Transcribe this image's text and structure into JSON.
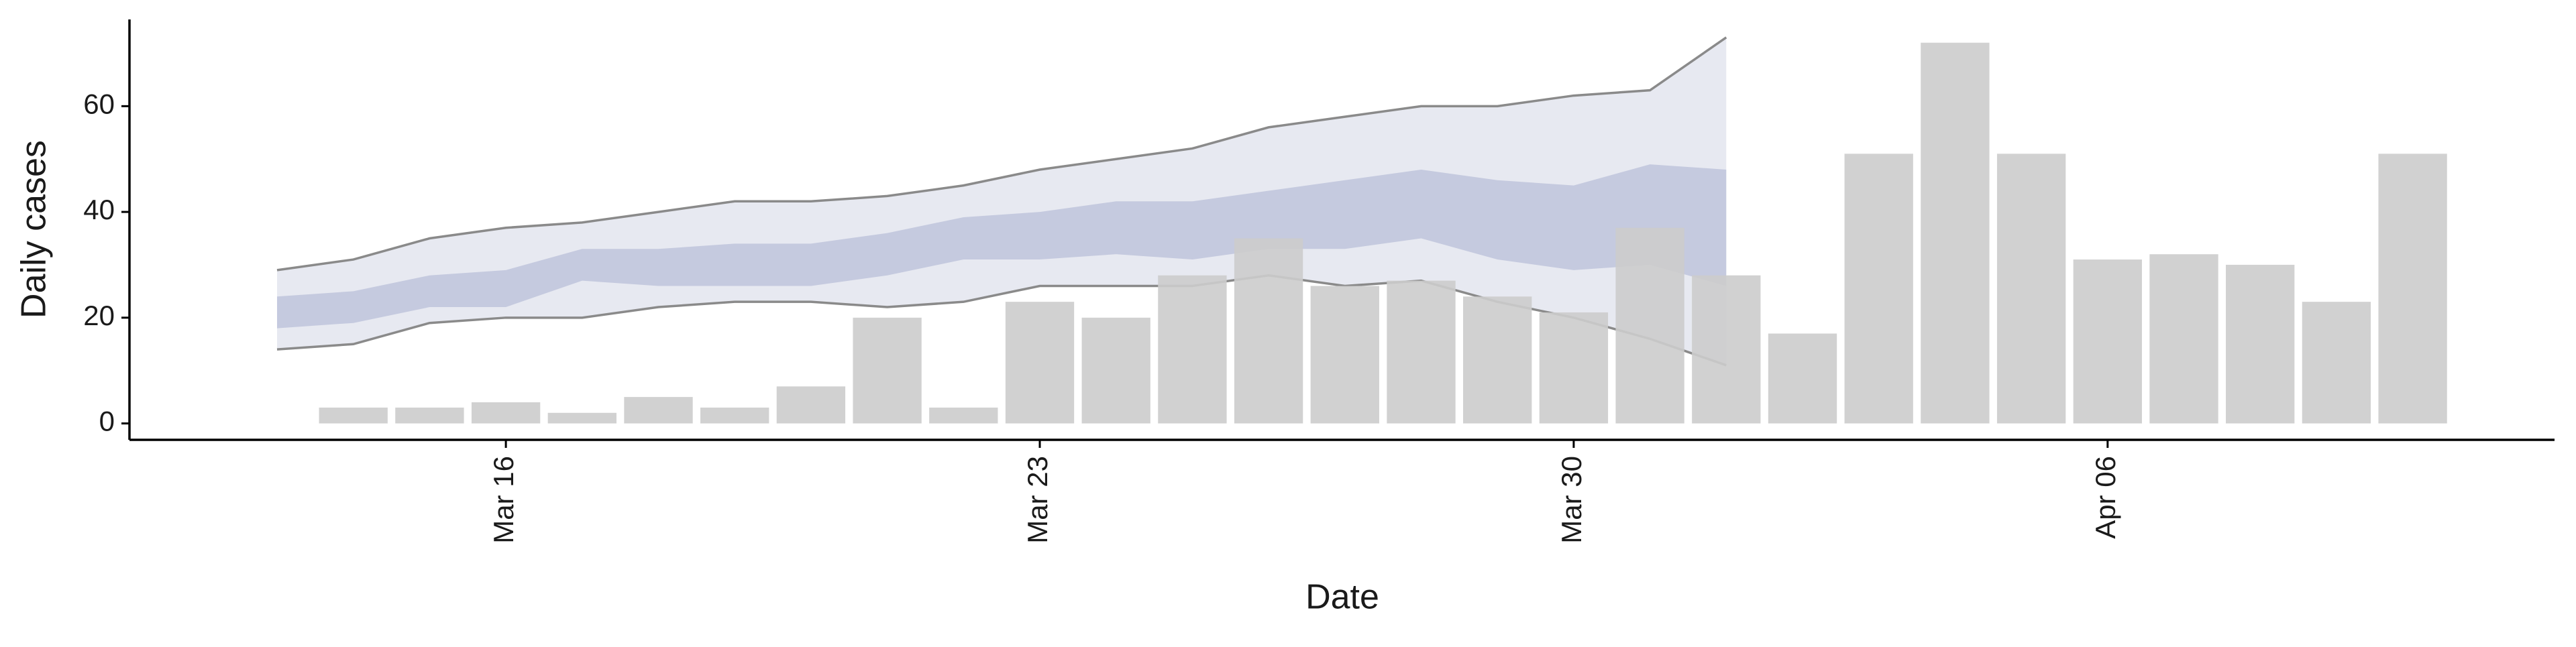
{
  "chart_data": {
    "type": "bar",
    "x_label": "Date",
    "y_label": "Daily cases",
    "categories": [
      "Mar 13",
      "Mar 14",
      "Mar 15",
      "Mar 16",
      "Mar 17",
      "Mar 18",
      "Mar 19",
      "Mar 20",
      "Mar 21",
      "Mar 22",
      "Mar 23",
      "Mar 24",
      "Mar 25",
      "Mar 26",
      "Mar 27",
      "Mar 28",
      "Mar 29",
      "Mar 30",
      "Mar 31",
      "Apr 01",
      "Apr 02",
      "Apr 03",
      "Apr 04",
      "Apr 05",
      "Apr 06",
      "Apr 07",
      "Apr 08",
      "Apr 09",
      "Apr 10"
    ],
    "series": [
      {
        "color": "#cccccc",
        "values": [
          null,
          3,
          3,
          4,
          2,
          5,
          3,
          7,
          20,
          3,
          23,
          20,
          28,
          35,
          26,
          27,
          24,
          21,
          37,
          28,
          17,
          51,
          72,
          51,
          31,
          32,
          30,
          23,
          51
        ]
      }
    ],
    "ribbons": [
      {
        "color": "#dfe2ec",
        "line_color": "#8a8a8a",
        "upper": [
          29,
          31,
          35,
          37,
          38,
          40,
          42,
          42,
          43,
          45,
          48,
          50,
          52,
          56,
          58,
          60,
          60,
          62,
          63,
          73,
          null,
          null,
          null,
          null,
          null,
          null,
          null,
          null,
          null
        ],
        "lower": [
          14,
          15,
          19,
          20,
          20,
          22,
          23,
          23,
          22,
          23,
          26,
          26,
          26,
          28,
          26,
          27,
          23,
          20,
          16,
          11,
          null,
          null,
          null,
          null,
          null,
          null,
          null,
          null,
          null
        ]
      },
      {
        "color": "#b9bfd8",
        "upper": [
          24,
          25,
          28,
          29,
          33,
          33,
          34,
          34,
          36,
          39,
          40,
          42,
          42,
          44,
          46,
          48,
          46,
          45,
          49,
          48,
          null,
          null,
          null,
          null,
          null,
          null,
          null,
          null,
          null
        ],
        "lower": [
          18,
          19,
          22,
          22,
          27,
          26,
          26,
          26,
          28,
          31,
          31,
          32,
          31,
          33,
          33,
          35,
          31,
          29,
          30,
          26,
          null,
          null,
          null,
          null,
          null,
          null,
          null,
          null,
          null
        ]
      }
    ],
    "xticks": [
      "Mar 16",
      "Mar 23",
      "Mar 30",
      "Apr 06"
    ],
    "ylim": [
      -3.1,
      76.4
    ],
    "yticks": [
      0,
      20,
      40,
      60
    ]
  }
}
